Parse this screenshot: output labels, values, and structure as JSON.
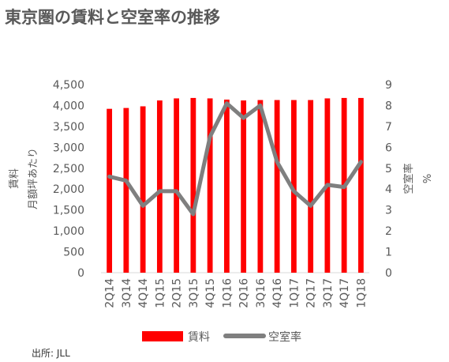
{
  "title": "東京圏の賃料と空室率の推移",
  "source": "出所: JLL",
  "colors": {
    "bar": "#ff0000",
    "line": "#7f7f7f",
    "text": "#595959"
  },
  "chart_data": {
    "type": "bar",
    "categories": [
      "2Q14",
      "3Q14",
      "4Q14",
      "1Q15",
      "2Q15",
      "3Q15",
      "4Q15",
      "1Q16",
      "2Q16",
      "3Q16",
      "4Q16",
      "1Q17",
      "2Q17",
      "3Q17",
      "4Q17",
      "1Q18"
    ],
    "series": [
      {
        "name": "賃料",
        "type": "bar",
        "axis": "left",
        "values": [
          3920,
          3940,
          3980,
          4120,
          4170,
          4180,
          4170,
          4140,
          4120,
          4130,
          4130,
          4130,
          4130,
          4170,
          4180,
          4180
        ]
      },
      {
        "name": "空室率",
        "type": "line",
        "axis": "right",
        "values": [
          4.6,
          4.4,
          3.2,
          3.9,
          3.9,
          2.8,
          6.5,
          8.1,
          7.4,
          8.0,
          5.3,
          3.9,
          3.2,
          4.2,
          4.1,
          5.3
        ]
      }
    ],
    "y_left": {
      "label_lines": [
        "賃料",
        "月額坪あたり"
      ],
      "range": [
        0,
        4500
      ],
      "ticks": [
        "0",
        "500",
        "1,000",
        "1,500",
        "2,000",
        "2,500",
        "3,000",
        "3,500",
        "4,000",
        "4,500"
      ]
    },
    "y_right": {
      "label_lines": [
        "空室率",
        "%"
      ],
      "range": [
        0,
        9
      ],
      "ticks": [
        "0",
        "1",
        "2",
        "3",
        "4",
        "5",
        "6",
        "7",
        "8",
        "9"
      ]
    },
    "grid": false,
    "legend": "bottom"
  }
}
